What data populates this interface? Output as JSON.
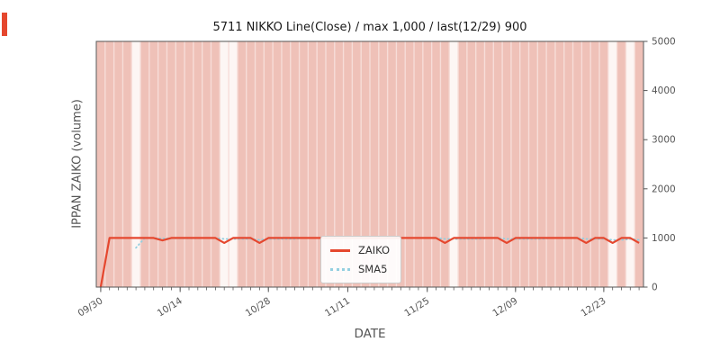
{
  "chart_data": {
    "type": "line",
    "title": "5711 NIKKO Line(Close) / max 1,000 / last(12/29) 900",
    "xlabel": "DATE",
    "ylabel": "IPPAN ZAIKO (volume)",
    "ylim": [
      0,
      5000
    ],
    "y_ticks": [
      0,
      1000,
      2000,
      3000,
      4000,
      5000
    ],
    "x_tick_labels": [
      "09/30",
      "10/14",
      "10/28",
      "11/11",
      "11/25",
      "12/09",
      "12/23"
    ],
    "x": [
      "09/30",
      "10/03",
      "10/04",
      "10/05",
      "10/06",
      "10/07",
      "10/11",
      "10/12",
      "10/13",
      "10/14",
      "10/17",
      "10/18",
      "10/19",
      "10/20",
      "10/21",
      "10/24",
      "10/25",
      "10/26",
      "10/27",
      "10/28",
      "10/31",
      "11/01",
      "11/02",
      "11/04",
      "11/07",
      "11/08",
      "11/09",
      "11/10",
      "11/11",
      "11/14",
      "11/15",
      "11/16",
      "11/17",
      "11/18",
      "11/21",
      "11/22",
      "11/24",
      "11/25",
      "11/28",
      "11/29",
      "11/30",
      "12/01",
      "12/02",
      "12/05",
      "12/06",
      "12/07",
      "12/08",
      "12/09",
      "12/12",
      "12/13",
      "12/14",
      "12/15",
      "12/16",
      "12/19",
      "12/20",
      "12/21",
      "12/22",
      "12/23",
      "12/26",
      "12/27",
      "12/28",
      "12/29"
    ],
    "series": [
      {
        "name": "ZAIKO",
        "color": "#e5472e",
        "style": "solid",
        "values": [
          0,
          1000,
          1000,
          1000,
          1000,
          1000,
          1000,
          950,
          1000,
          1000,
          1000,
          1000,
          1000,
          1000,
          900,
          1000,
          1000,
          1000,
          900,
          1000,
          1000,
          1000,
          1000,
          1000,
          1000,
          1000,
          1000,
          1000,
          1000,
          1000,
          1000,
          1000,
          1000,
          1000,
          1000,
          1000,
          1000,
          1000,
          1000,
          900,
          1000,
          1000,
          1000,
          1000,
          1000,
          1000,
          900,
          1000,
          1000,
          1000,
          1000,
          1000,
          1000,
          1000,
          1000,
          900,
          1000,
          1000,
          900,
          1000,
          1000,
          900
        ]
      },
      {
        "name": "SMA5",
        "color": "#93cfe0",
        "style": "dotted",
        "derived": "5-day moving average of ZAIKO"
      }
    ],
    "max_value": 1000,
    "last_label": "last(12/29) 900",
    "last_value": 900,
    "legend_position": "lower center",
    "grid": false,
    "background": {
      "plot_bg": "#f7ddd8",
      "day_band_color": "#efc1b8",
      "holiday_band_color": "#fdf6f4",
      "white_day_indices": [
        4,
        14,
        15,
        40,
        58,
        60
      ]
    }
  },
  "decorations": {
    "left_edge_bar_color": "#e5472e"
  }
}
